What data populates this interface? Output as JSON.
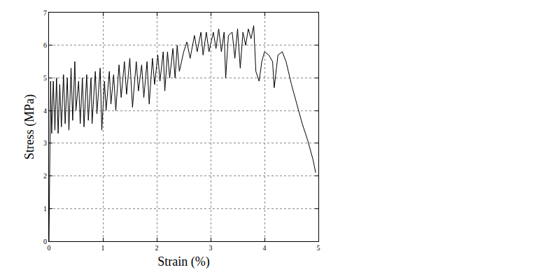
{
  "chart_data": {
    "type": "line",
    "x_label": "Strain (%)",
    "y_label": "Stress (MPa)",
    "color": "#000000",
    "grid": true,
    "xlim": [
      0,
      5
    ],
    "xticks": [
      0,
      1,
      2,
      3,
      4,
      5
    ],
    "ylim": [
      0,
      7
    ],
    "yticks": [
      0,
      1,
      2,
      3,
      4,
      5,
      6,
      7
    ],
    "x": [
      0,
      0.01,
      0.03,
      0.05,
      0.08,
      0.11,
      0.14,
      0.17,
      0.2,
      0.23,
      0.27,
      0.3,
      0.34,
      0.37,
      0.41,
      0.44,
      0.48,
      0.5,
      0.55,
      0.58,
      0.62,
      0.65,
      0.7,
      0.73,
      0.78,
      0.8,
      0.86,
      0.89,
      0.95,
      0.98,
      1.03,
      1.06,
      1.12,
      1.15,
      1.2,
      1.24,
      1.3,
      1.34,
      1.4,
      1.44,
      1.5,
      1.55,
      1.62,
      1.66,
      1.72,
      1.76,
      1.82,
      1.86,
      1.92,
      1.96,
      2.02,
      2.06,
      2.12,
      2.15,
      2.2,
      2.24,
      2.3,
      2.34,
      2.38,
      2.42,
      2.5,
      2.56,
      2.62,
      2.7,
      2.75,
      2.82,
      2.86,
      2.92,
      2.97,
      3.05,
      3.1,
      3.15,
      3.2,
      3.25,
      3.28,
      3.33,
      3.4,
      3.45,
      3.5,
      3.55,
      3.6,
      3.65,
      3.7,
      3.75,
      3.8,
      3.84,
      3.9,
      3.95,
      4.0,
      4.08,
      4.15,
      4.18,
      4.25,
      4.33,
      4.4,
      4.5,
      4.6,
      4.7,
      4.8,
      4.9,
      4.95
    ],
    "values": [
      0,
      2,
      4.9,
      3.3,
      4.9,
      3.4,
      5.0,
      3.3,
      4.8,
      3.5,
      5.1,
      3.6,
      5.0,
      3.4,
      5.3,
      3.7,
      5.5,
      4.0,
      4.9,
      3.6,
      5.0,
      3.5,
      5.1,
      3.7,
      5.0,
      3.6,
      5.2,
      3.9,
      5.3,
      3.4,
      4.9,
      4.0,
      5.2,
      4.2,
      5.1,
      4.0,
      5.4,
      4.4,
      5.5,
      4.5,
      5.6,
      4.1,
      5.5,
      4.6,
      5.4,
      4.4,
      5.5,
      4.2,
      5.6,
      4.8,
      5.7,
      4.9,
      5.8,
      4.6,
      5.8,
      5.0,
      5.9,
      5.0,
      6.0,
      5.2,
      5.8,
      6.1,
      5.6,
      6.3,
      5.8,
      6.4,
      5.7,
      6.4,
      5.8,
      6.4,
      5.9,
      6.5,
      5.8,
      6.4,
      5.0,
      6.3,
      6.4,
      5.6,
      6.5,
      5.3,
      6.4,
      6.0,
      6.5,
      6.2,
      6.6,
      5.2,
      4.9,
      5.5,
      5.8,
      5.7,
      5.5,
      4.7,
      5.7,
      5.8,
      5.5,
      4.8,
      4.2,
      3.6,
      3.1,
      2.5,
      2.1
    ]
  }
}
